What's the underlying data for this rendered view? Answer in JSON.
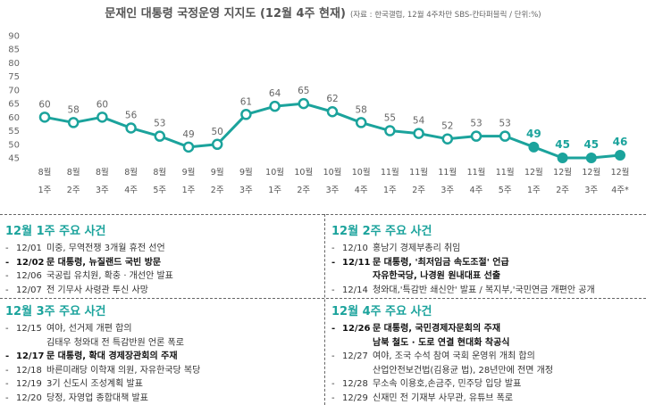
{
  "header": {
    "title": "문재인 대통령 국정운영 지지도 (12월 4주 현재)",
    "source": "(자료 : 한국갤럽, 12월 4주차만 SBS-칸타퍼블릭 / 단위:%)"
  },
  "chart_data": {
    "type": "line",
    "title": "문재인 대통령 국정운영 지지도 (12월 4주 현재)",
    "categories": [
      [
        "8월",
        "1주"
      ],
      [
        "8월",
        "2주"
      ],
      [
        "8월",
        "3주"
      ],
      [
        "8월",
        "4주"
      ],
      [
        "8월",
        "5주"
      ],
      [
        "9월",
        "1주"
      ],
      [
        "9월",
        "2주"
      ],
      [
        "9월",
        "3주"
      ],
      [
        "10월",
        "1주"
      ],
      [
        "10월",
        "2주"
      ],
      [
        "10월",
        "3주"
      ],
      [
        "10월",
        "4주"
      ],
      [
        "11월",
        "1주"
      ],
      [
        "11월",
        "2주"
      ],
      [
        "11월",
        "3주"
      ],
      [
        "11월",
        "4주"
      ],
      [
        "11월",
        "5주"
      ],
      [
        "12월",
        "1주"
      ],
      [
        "12월",
        "2주"
      ],
      [
        "12월",
        "3주"
      ],
      [
        "12월",
        "4주*"
      ]
    ],
    "values": [
      60,
      58,
      60,
      56,
      53,
      49,
      50,
      61,
      64,
      65,
      62,
      58,
      55,
      54,
      52,
      53,
      53,
      49,
      45,
      45,
      46
    ],
    "highlight_from_index": 17,
    "yticks": [
      45,
      50,
      55,
      60,
      65,
      70,
      75,
      80,
      85,
      90
    ],
    "ylim": [
      45,
      90
    ],
    "colors": {
      "line": "#1ba39c",
      "highlight_label": "#1ba39c",
      "label": "#666666"
    }
  },
  "events": [
    {
      "title": "12월 1주 주요 사건",
      "items": [
        {
          "date": "12/01",
          "text": "미중, 무역전쟁 3개월 휴전 선언",
          "bold": false,
          "cont": []
        },
        {
          "date": "12/02",
          "text": "문 대통령, 뉴질랜드 국빈 방문",
          "bold": true,
          "cont": []
        },
        {
          "date": "12/06",
          "text": "국공립 유치원, 확충 · 개선안 발표",
          "bold": false,
          "cont": []
        },
        {
          "date": "12/07",
          "text": "전 기무사 사령관 투신 사망",
          "bold": false,
          "cont": []
        }
      ]
    },
    {
      "title": "12월 2주 주요 사건",
      "items": [
        {
          "date": "12/10",
          "text": "홍남기 경제부총리 취임",
          "bold": false,
          "cont": []
        },
        {
          "date": "12/11",
          "text": "문 대통령, '최저임금 속도조절' 언급",
          "bold": true,
          "cont": [
            "자유한국당, 나경원 원내대표 선출"
          ]
        },
        {
          "date": "12/14",
          "text": "청와대,'특감반 쇄신안' 발표 / 복지부,'국민연금 개편안 공개",
          "bold": false,
          "cont": []
        }
      ]
    },
    {
      "title": "12월 3주 주요 사건",
      "items": [
        {
          "date": "12/15",
          "text": "여야, 선거제 개편 합의",
          "bold": false,
          "cont": [
            "김태우 청와대 전 특감반원 언론 폭로"
          ]
        },
        {
          "date": "12/17",
          "text": "문 대통령, 확대 경제장관회의 주재",
          "bold": true,
          "cont": []
        },
        {
          "date": "12/18",
          "text": "바른미래당 이학재 의원, 자유한국당 복당",
          "bold": false,
          "cont": []
        },
        {
          "date": "12/19",
          "text": "3기 신도시 조성계획 발표",
          "bold": false,
          "cont": []
        },
        {
          "date": "12/20",
          "text": "당정, 자영업 종합대책 발표",
          "bold": false,
          "cont": []
        }
      ]
    },
    {
      "title": "12월 4주 주요 사건",
      "items": [
        {
          "date": "12/26",
          "text": "문 대통령, 국민경제자문회의 주재",
          "bold": true,
          "cont": [
            "남북 철도 · 도로 연결 현대화 착공식"
          ]
        },
        {
          "date": "12/27",
          "text": "여야, 조국 수석 참여 국회 운영위 개최 합의",
          "bold": false,
          "cont": [
            "산업안전보건법(김용균 법), 28년만에 전면 개정"
          ]
        },
        {
          "date": "12/28",
          "text": "무소속 이용호,손금주, 민주당 입당 발표",
          "bold": false,
          "cont": []
        },
        {
          "date": "12/29",
          "text": "신재민 전 기재부 사무관, 유튜브 폭로",
          "bold": false,
          "cont": []
        }
      ]
    }
  ]
}
